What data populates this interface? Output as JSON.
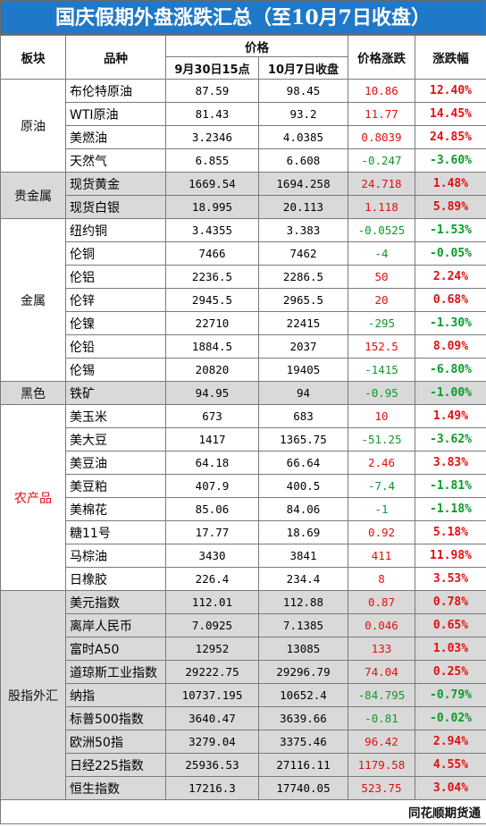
{
  "title": "国庆假期外盘涨跌汇总（至10月7日收盘）",
  "headers": {
    "sector": "板块",
    "name": "品种",
    "price": "价格",
    "price_sep30": "9月30日15点",
    "price_oct7": "10月7日收盘",
    "change": "价格涨跌",
    "pct": "涨跌幅"
  },
  "colors": {
    "title_bg": "#1f78c8",
    "up": "#e01010",
    "down": "#0a9a2a",
    "gray_band": "#d9d9d9"
  },
  "sectors": [
    {
      "name": "原油",
      "red": false,
      "gray": false,
      "rows": [
        {
          "name": "布伦特原油",
          "p1": "87.59",
          "p2": "98.45",
          "chg": "10.86",
          "pct": "12.40%",
          "dir": "up"
        },
        {
          "name": "WTI原油",
          "p1": "81.43",
          "p2": "93.2",
          "chg": "11.77",
          "pct": "14.45%",
          "dir": "up"
        },
        {
          "name": "美燃油",
          "p1": "3.2346",
          "p2": "4.0385",
          "chg": "0.8039",
          "pct": "24.85%",
          "dir": "up"
        },
        {
          "name": "天然气",
          "p1": "6.855",
          "p2": "6.608",
          "chg": "-0.247",
          "pct": "-3.60%",
          "dir": "down"
        }
      ]
    },
    {
      "name": "贵金属",
      "red": false,
      "gray": true,
      "rows": [
        {
          "name": "现货黄金",
          "p1": "1669.54",
          "p2": "1694.258",
          "chg": "24.718",
          "pct": "1.48%",
          "dir": "up"
        },
        {
          "name": "现货白银",
          "p1": "18.995",
          "p2": "20.113",
          "chg": "1.118",
          "pct": "5.89%",
          "dir": "up"
        }
      ]
    },
    {
      "name": "金属",
      "red": false,
      "gray": false,
      "rows": [
        {
          "name": "纽约铜",
          "p1": "3.4355",
          "p2": "3.383",
          "chg": "-0.0525",
          "pct": "-1.53%",
          "dir": "down"
        },
        {
          "name": "伦铜",
          "p1": "7466",
          "p2": "7462",
          "chg": "-4",
          "pct": "-0.05%",
          "dir": "down"
        },
        {
          "name": "伦铝",
          "p1": "2236.5",
          "p2": "2286.5",
          "chg": "50",
          "pct": "2.24%",
          "dir": "up"
        },
        {
          "name": "伦锌",
          "p1": "2945.5",
          "p2": "2965.5",
          "chg": "20",
          "pct": "0.68%",
          "dir": "up"
        },
        {
          "name": "伦镍",
          "p1": "22710",
          "p2": "22415",
          "chg": "-295",
          "pct": "-1.30%",
          "dir": "down"
        },
        {
          "name": "伦铅",
          "p1": "1884.5",
          "p2": "2037",
          "chg": "152.5",
          "pct": "8.09%",
          "dir": "up"
        },
        {
          "name": "伦锡",
          "p1": "20820",
          "p2": "19405",
          "chg": "-1415",
          "pct": "-6.80%",
          "dir": "down"
        }
      ]
    },
    {
      "name": "黑色",
      "red": false,
      "gray": true,
      "rows": [
        {
          "name": "铁矿",
          "p1": "94.95",
          "p2": "94",
          "chg": "-0.95",
          "pct": "-1.00%",
          "dir": "down"
        }
      ]
    },
    {
      "name": "农产品",
      "red": true,
      "gray": false,
      "rows": [
        {
          "name": "美玉米",
          "p1": "673",
          "p2": "683",
          "chg": "10",
          "pct": "1.49%",
          "dir": "up"
        },
        {
          "name": "美大豆",
          "p1": "1417",
          "p2": "1365.75",
          "chg": "-51.25",
          "pct": "-3.62%",
          "dir": "down"
        },
        {
          "name": "美豆油",
          "p1": "64.18",
          "p2": "66.64",
          "chg": "2.46",
          "pct": "3.83%",
          "dir": "up"
        },
        {
          "name": "美豆粕",
          "p1": "407.9",
          "p2": "400.5",
          "chg": "-7.4",
          "pct": "-1.81%",
          "dir": "down"
        },
        {
          "name": "美棉花",
          "p1": "85.06",
          "p2": "84.06",
          "chg": "-1",
          "pct": "-1.18%",
          "dir": "down"
        },
        {
          "name": "糖11号",
          "p1": "17.77",
          "p2": "18.69",
          "chg": "0.92",
          "pct": "5.18%",
          "dir": "up"
        },
        {
          "name": "马棕油",
          "p1": "3430",
          "p2": "3841",
          "chg": "411",
          "pct": "11.98%",
          "dir": "up"
        },
        {
          "name": "日橡胶",
          "p1": "226.4",
          "p2": "234.4",
          "chg": "8",
          "pct": "3.53%",
          "dir": "up"
        }
      ]
    },
    {
      "name": "股指外汇",
      "red": false,
      "gray": true,
      "rows": [
        {
          "name": "美元指数",
          "p1": "112.01",
          "p2": "112.88",
          "chg": "0.87",
          "pct": "0.78%",
          "dir": "up"
        },
        {
          "name": "离岸人民币",
          "p1": "7.0925",
          "p2": "7.1385",
          "chg": "0.046",
          "pct": "0.65%",
          "dir": "up"
        },
        {
          "name": "富时A50",
          "p1": "12952",
          "p2": "13085",
          "chg": "133",
          "pct": "1.03%",
          "dir": "up"
        },
        {
          "name": "道琼斯工业指数",
          "p1": "29222.75",
          "p2": "29296.79",
          "chg": "74.04",
          "pct": "0.25%",
          "dir": "up"
        },
        {
          "name": "纳指",
          "p1": "10737.195",
          "p2": "10652.4",
          "chg": "-84.795",
          "pct": "-0.79%",
          "dir": "down"
        },
        {
          "name": "标普500指数",
          "p1": "3640.47",
          "p2": "3639.66",
          "chg": "-0.81",
          "pct": "-0.02%",
          "dir": "down"
        },
        {
          "name": "欧洲50指",
          "p1": "3279.04",
          "p2": "3375.46",
          "chg": "96.42",
          "pct": "2.94%",
          "dir": "up"
        },
        {
          "name": "日经225指数",
          "p1": "25936.53",
          "p2": "27116.11",
          "chg": "1179.58",
          "pct": "4.55%",
          "dir": "up"
        },
        {
          "name": "恒生指数",
          "p1": "17216.3",
          "p2": "17740.05",
          "chg": "523.75",
          "pct": "3.04%",
          "dir": "up"
        }
      ]
    }
  ],
  "footer": "同花顺期货通"
}
